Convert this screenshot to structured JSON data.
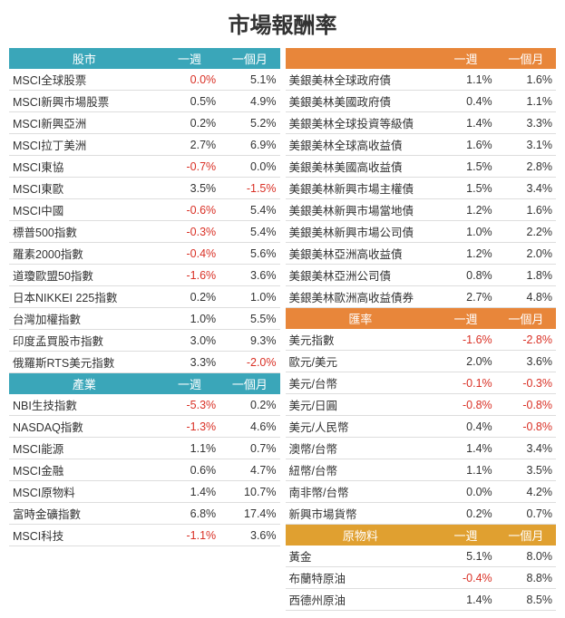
{
  "title": "市場報酬率",
  "col_headers": {
    "week": "一週",
    "month": "一個月"
  },
  "sections": {
    "stocks": {
      "name": "股市",
      "color": "teal"
    },
    "industry": {
      "name": "產業",
      "color": "teal"
    },
    "bonds": {
      "name": "",
      "color": "orange"
    },
    "fx": {
      "name": "匯率",
      "color": "orange"
    },
    "commod": {
      "name": "原物料",
      "color": "yellow"
    }
  },
  "stocks": [
    {
      "n": "MSCI全球股票",
      "w": "0.0%",
      "wn": true,
      "m": "5.1%",
      "mn": false
    },
    {
      "n": "MSCI新興市場股票",
      "w": "0.5%",
      "wn": false,
      "m": "4.9%",
      "mn": false
    },
    {
      "n": "MSCI新興亞洲",
      "w": "0.2%",
      "wn": false,
      "m": "5.2%",
      "mn": false
    },
    {
      "n": "MSCI拉丁美洲",
      "w": "2.7%",
      "wn": false,
      "m": "6.9%",
      "mn": false
    },
    {
      "n": "MSCI東協",
      "w": "-0.7%",
      "wn": true,
      "m": "0.0%",
      "mn": false
    },
    {
      "n": "MSCI東歐",
      "w": "3.5%",
      "wn": false,
      "m": "-1.5%",
      "mn": true
    },
    {
      "n": "MSCI中國",
      "w": "-0.6%",
      "wn": true,
      "m": "5.4%",
      "mn": false
    },
    {
      "n": "標普500指數",
      "w": "-0.3%",
      "wn": true,
      "m": "5.4%",
      "mn": false
    },
    {
      "n": "羅素2000指數",
      "w": "-0.4%",
      "wn": true,
      "m": "5.6%",
      "mn": false
    },
    {
      "n": "道瓊歐盟50指數",
      "w": "-1.6%",
      "wn": true,
      "m": "3.6%",
      "mn": false
    },
    {
      "n": "日本NIKKEI 225指數",
      "w": "0.2%",
      "wn": false,
      "m": "1.0%",
      "mn": false
    },
    {
      "n": "台灣加權指數",
      "w": "1.0%",
      "wn": false,
      "m": "5.5%",
      "mn": false
    },
    {
      "n": "印度孟買股市指數",
      "w": "3.0%",
      "wn": false,
      "m": "9.3%",
      "mn": false
    },
    {
      "n": "俄羅斯RTS美元指數",
      "w": "3.3%",
      "wn": false,
      "m": "-2.0%",
      "mn": true
    }
  ],
  "industry": [
    {
      "n": "NBI生技指數",
      "w": "-5.3%",
      "wn": true,
      "m": "0.2%",
      "mn": false
    },
    {
      "n": "NASDAQ指數",
      "w": "-1.3%",
      "wn": true,
      "m": "4.6%",
      "mn": false
    },
    {
      "n": "MSCI能源",
      "w": "1.1%",
      "wn": false,
      "m": "0.7%",
      "mn": false
    },
    {
      "n": "MSCI金融",
      "w": "0.6%",
      "wn": false,
      "m": "4.7%",
      "mn": false
    },
    {
      "n": "MSCI原物料",
      "w": "1.4%",
      "wn": false,
      "m": "10.7%",
      "mn": false
    },
    {
      "n": "富時金礦指數",
      "w": "6.8%",
      "wn": false,
      "m": "17.4%",
      "mn": false
    },
    {
      "n": "MSCI科技",
      "w": "-1.1%",
      "wn": true,
      "m": "3.6%",
      "mn": false
    }
  ],
  "bonds": [
    {
      "n": "美銀美林全球政府債",
      "w": "1.1%",
      "wn": false,
      "m": "1.6%",
      "mn": false
    },
    {
      "n": "美銀美林美國政府債",
      "w": "0.4%",
      "wn": false,
      "m": "1.1%",
      "mn": false
    },
    {
      "n": "美銀美林全球投資等級債",
      "w": "1.4%",
      "wn": false,
      "m": "3.3%",
      "mn": false
    },
    {
      "n": "美銀美林全球高收益債",
      "w": "1.6%",
      "wn": false,
      "m": "3.1%",
      "mn": false
    },
    {
      "n": "美銀美林美國高收益債",
      "w": "1.5%",
      "wn": false,
      "m": "2.8%",
      "mn": false
    },
    {
      "n": "美銀美林新興市場主權債",
      "w": "1.5%",
      "wn": false,
      "m": "3.4%",
      "mn": false
    },
    {
      "n": "美銀美林新興市場當地債",
      "w": "1.2%",
      "wn": false,
      "m": "1.6%",
      "mn": false
    },
    {
      "n": "美銀美林新興市場公司債",
      "w": "1.0%",
      "wn": false,
      "m": "2.2%",
      "mn": false
    },
    {
      "n": "美銀美林亞洲高收益債",
      "w": "1.2%",
      "wn": false,
      "m": "2.0%",
      "mn": false
    },
    {
      "n": "美銀美林亞洲公司債",
      "w": "0.8%",
      "wn": false,
      "m": "1.8%",
      "mn": false
    },
    {
      "n": "美銀美林歐洲高收益債券",
      "w": "2.7%",
      "wn": false,
      "m": "4.8%",
      "mn": false
    }
  ],
  "fx": [
    {
      "n": "美元指數",
      "w": "-1.6%",
      "wn": true,
      "m": "-2.8%",
      "mn": true
    },
    {
      "n": "歐元/美元",
      "w": "2.0%",
      "wn": false,
      "m": "3.6%",
      "mn": false
    },
    {
      "n": "美元/台幣",
      "w": "-0.1%",
      "wn": true,
      "m": "-0.3%",
      "mn": true
    },
    {
      "n": "美元/日圓",
      "w": "-0.8%",
      "wn": true,
      "m": "-0.8%",
      "mn": true
    },
    {
      "n": "美元/人民幣",
      "w": "0.4%",
      "wn": false,
      "m": "-0.8%",
      "mn": true
    },
    {
      "n": "澳幣/台幣",
      "w": "1.4%",
      "wn": false,
      "m": "3.4%",
      "mn": false
    },
    {
      "n": "紐幣/台幣",
      "w": "1.1%",
      "wn": false,
      "m": "3.5%",
      "mn": false
    },
    {
      "n": "南非幣/台幣",
      "w": "0.0%",
      "wn": false,
      "m": "4.2%",
      "mn": false
    },
    {
      "n": "新興市場貨幣",
      "w": "0.2%",
      "wn": false,
      "m": "0.7%",
      "mn": false
    }
  ],
  "commod": [
    {
      "n": "黃金",
      "w": "5.1%",
      "wn": false,
      "m": "8.0%",
      "mn": false
    },
    {
      "n": "布蘭特原油",
      "w": "-0.4%",
      "wn": true,
      "m": "8.8%",
      "mn": false
    },
    {
      "n": "西德州原油",
      "w": "1.4%",
      "wn": false,
      "m": "8.5%",
      "mn": false
    }
  ]
}
